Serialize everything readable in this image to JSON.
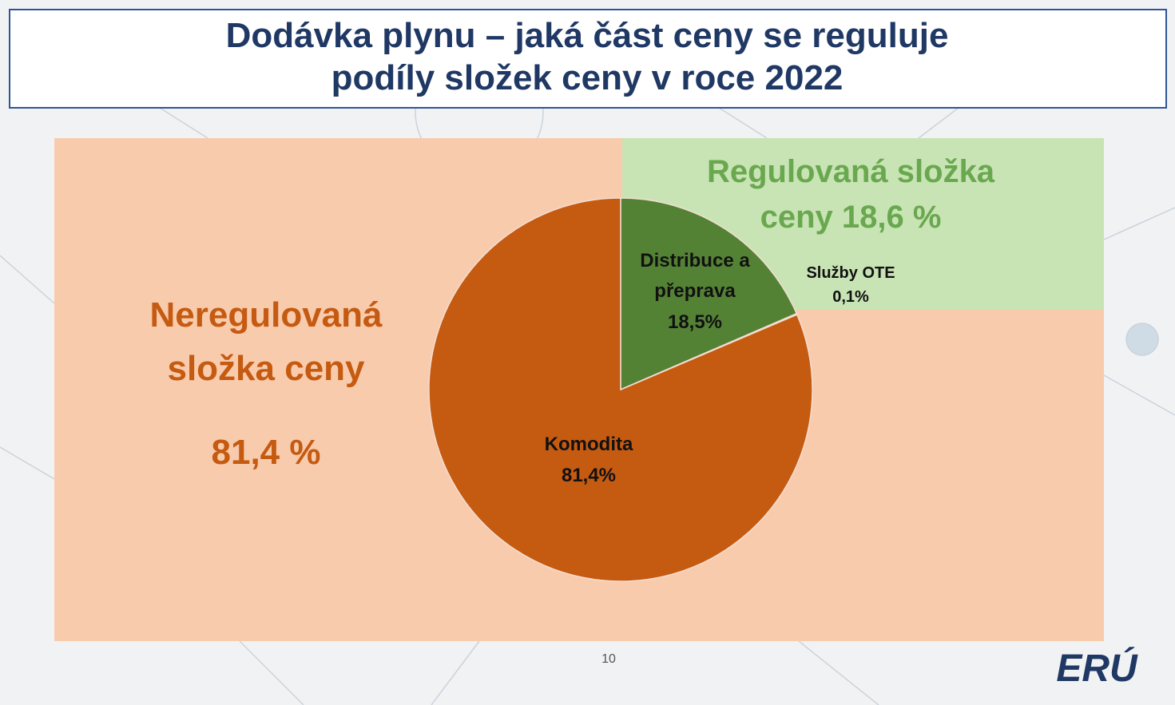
{
  "chart_data": {
    "type": "pie",
    "title": [
      "Dodávka plynu – jaká část ceny se reguluje",
      "podíly složek ceny v roce 2022"
    ],
    "categories": [
      "Distribuce a přeprava",
      "Služby OTE",
      "Komodita"
    ],
    "values": [
      18.5,
      0.1,
      81.4
    ],
    "value_labels": [
      "18,5%",
      "0,1%",
      "81,4%"
    ],
    "colors": [
      "#548235",
      "#548235",
      "#c55a11"
    ],
    "annotations": {
      "regulated": [
        "Regulovaná složka",
        "ceny 18,6 %"
      ],
      "unregulated": [
        "Neregulovaná",
        "složka ceny",
        "81,4 %"
      ]
    }
  },
  "footer": {
    "page_number": "10",
    "logo": "ERÚ"
  }
}
